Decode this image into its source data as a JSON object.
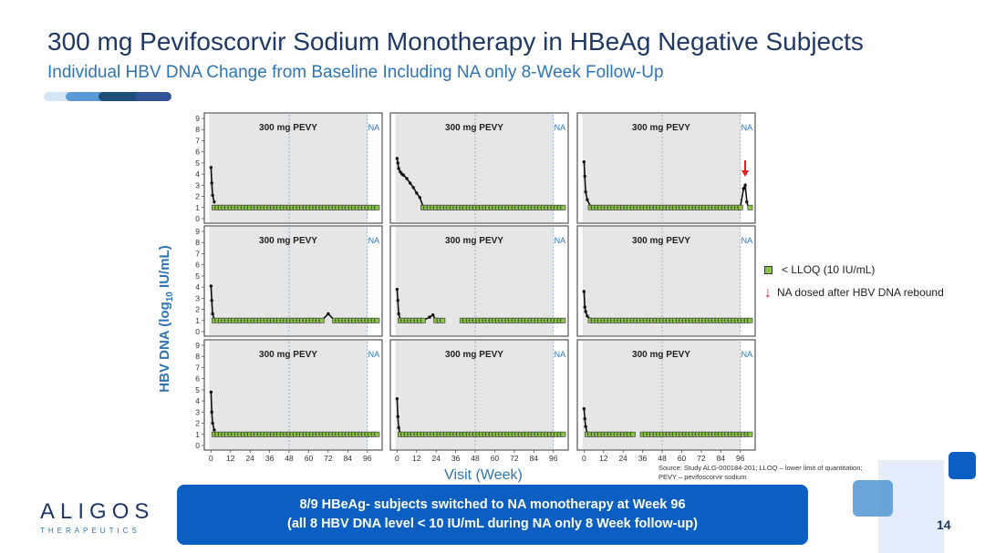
{
  "slide": {
    "title": "300 mg Pevifoscorvir Sodium Monotherapy in HBeAg Negative Subjects",
    "subtitle": "Individual HBV DNA Change from Baseline Including NA only 8-Week Follow-Up",
    "page_number": "14"
  },
  "colors": {
    "accent": "#2e75b6",
    "title": "#1f3864",
    "callout": "#0b5fc2",
    "marker_lloq": "#8bc34a",
    "arrow": "#e41a1c",
    "panel_shade": "#e6e6e6"
  },
  "chart_data": {
    "type": "line",
    "ylabel_prefix": "HBV DNA (log",
    "ylabel_sub": "10",
    "ylabel_suffix": " IU/mL)",
    "xlabel": "Visit (Week)",
    "ylim": [
      0,
      9
    ],
    "xlim": [
      -3,
      104
    ],
    "yticks": [
      0,
      1,
      2,
      3,
      4,
      5,
      6,
      7,
      8,
      9
    ],
    "xticks": [
      0,
      12,
      24,
      36,
      48,
      60,
      72,
      84,
      96
    ],
    "phase_label": "300 mg PEVY",
    "na_label": "NA",
    "treatment_end_week": 96,
    "week48_line": 48,
    "grid": false,
    "panels": [
      {
        "name": "subject-1",
        "detected": [
          [
            0,
            4.6
          ],
          [
            0.5,
            3.2
          ],
          [
            1,
            2.1
          ],
          [
            2,
            1.5
          ]
        ],
        "lloq_start": 2,
        "lloq_end": 103,
        "gaps": [],
        "arrow": false,
        "rebound": null
      },
      {
        "name": "subject-2",
        "detected": [
          [
            0,
            5.4
          ],
          [
            0.5,
            5.0
          ],
          [
            1,
            4.5
          ],
          [
            2,
            4.2
          ],
          [
            3,
            4.0
          ],
          [
            4,
            3.9
          ],
          [
            6,
            3.6
          ],
          [
            8,
            3.2
          ],
          [
            10,
            2.8
          ],
          [
            12,
            2.3
          ],
          [
            14,
            1.9
          ],
          [
            16,
            1.1
          ]
        ],
        "lloq_start": 16,
        "lloq_end": 103,
        "gaps": [],
        "arrow": false,
        "rebound": null
      },
      {
        "name": "subject-3",
        "detected": [
          [
            0,
            5.1
          ],
          [
            0.5,
            3.8
          ],
          [
            1,
            2.4
          ],
          [
            2,
            1.7
          ],
          [
            4,
            1.1
          ]
        ],
        "lloq_start": 4,
        "lloq_end": 103,
        "gaps": [],
        "arrow": true,
        "rebound": [
          [
            96,
            1.0
          ],
          [
            98,
            2.7
          ],
          [
            99,
            3.0
          ],
          [
            100,
            1.5
          ],
          [
            101,
            1.0
          ]
        ]
      },
      {
        "name": "subject-4",
        "detected": [
          [
            0,
            4.1
          ],
          [
            0.5,
            2.8
          ],
          [
            1,
            1.6
          ],
          [
            2,
            1.1
          ]
        ],
        "lloq_start": 2,
        "lloq_end": 103,
        "gaps": [],
        "arrow": false,
        "rebound": [
          [
            68,
            1.0
          ],
          [
            72,
            1.6
          ],
          [
            76,
            1.0
          ]
        ]
      },
      {
        "name": "subject-5",
        "detected": [
          [
            0,
            3.8
          ],
          [
            0.5,
            2.8
          ],
          [
            1,
            1.6
          ],
          [
            2,
            1.1
          ]
        ],
        "lloq_start": 2,
        "lloq_end": 103,
        "gaps": [
          [
            28,
            40
          ]
        ],
        "arrow": false,
        "rebound": [
          [
            16,
            1.0
          ],
          [
            20,
            1.3
          ],
          [
            22,
            1.5
          ],
          [
            24,
            1.0
          ]
        ]
      },
      {
        "name": "subject-6",
        "detected": [
          [
            0,
            3.6
          ],
          [
            0.5,
            2.2
          ],
          [
            1,
            1.8
          ],
          [
            2,
            1.4
          ],
          [
            4,
            1.1
          ]
        ],
        "lloq_start": 4,
        "lloq_end": 103,
        "gaps": [],
        "arrow": false,
        "rebound": null
      },
      {
        "name": "subject-7",
        "detected": [
          [
            0,
            4.8
          ],
          [
            0.5,
            3.0
          ],
          [
            1,
            2.0
          ],
          [
            2,
            1.4
          ]
        ],
        "lloq_start": 2,
        "lloq_end": 103,
        "gaps": [],
        "arrow": false,
        "rebound": null
      },
      {
        "name": "subject-8",
        "detected": [
          [
            0,
            4.2
          ],
          [
            0.5,
            2.6
          ],
          [
            1,
            1.6
          ],
          [
            2,
            1.1
          ]
        ],
        "lloq_start": 2,
        "lloq_end": 103,
        "gaps": [],
        "arrow": false,
        "rebound": null
      },
      {
        "name": "subject-9",
        "detected": [
          [
            0,
            3.3
          ],
          [
            0.5,
            2.4
          ],
          [
            1,
            1.7
          ],
          [
            2,
            1.1
          ]
        ],
        "lloq_start": 2,
        "lloq_end": 103,
        "gaps": [
          [
            30,
            36
          ]
        ],
        "arrow": false,
        "rebound": null
      }
    ],
    "legend": [
      {
        "marker": "lloq-square",
        "label": "< LLOQ (10 IU/mL)"
      },
      {
        "marker": "red-arrow",
        "label": "NA dosed after HBV DNA rebound"
      }
    ]
  },
  "source_note": {
    "line1": "Source: Study ALG-000184-201; LLOQ – lower limit of quantitation;",
    "line2": "PEVY – pevifoscorvir sodium"
  },
  "callout": {
    "line1": "8/9 HBeAg- subjects switched to NA monotherapy at Week 96",
    "line2": "(all 8 HBV DNA level < 10 IU/mL during NA only 8 Week follow-up)"
  },
  "logo": {
    "name": "ALIGOS",
    "tagline": "THERAPEUTICS"
  }
}
